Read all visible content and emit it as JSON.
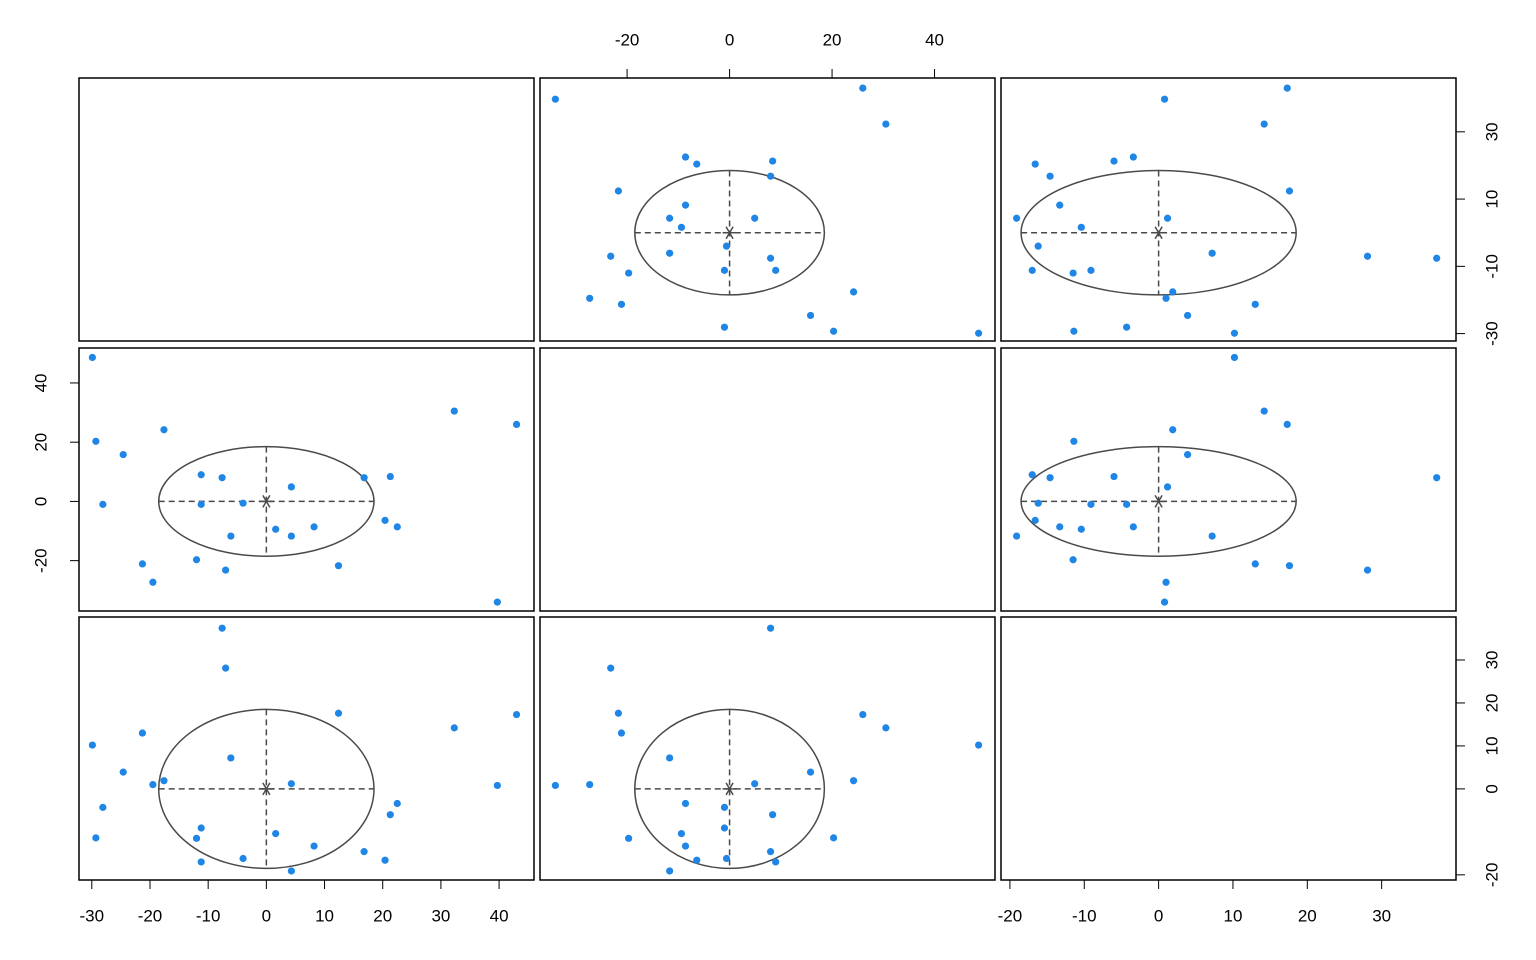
{
  "chart_data": {
    "type": "pairs",
    "data": [
      [
        39.7,
        43,
        32.3,
        22.5,
        20.4,
        21.3,
        16.8,
        12.4,
        8.2,
        4.3,
        4.3,
        1.6,
        -4,
        -6.1,
        -7,
        -7.6,
        -11.2,
        -11.2,
        -12,
        -17.6,
        -19.5,
        -21.3,
        -24.6,
        -28.1,
        -29.3,
        -29.9
      ],
      [
        -34,
        26,
        30.5,
        -8.6,
        -6.4,
        8.4,
        8,
        -21.7,
        -8.6,
        -11.7,
        4.9,
        -9.4,
        -0.6,
        -11.7,
        -23.2,
        8,
        9,
        -1,
        -19.7,
        24.2,
        -27.3,
        -21.1,
        15.8,
        -1,
        20.3,
        48.6
      ],
      [
        0.8,
        17.3,
        14.2,
        -3.4,
        -16.6,
        -6,
        -14.6,
        17.6,
        -13.3,
        -19.1,
        1.2,
        -10.4,
        -16.2,
        7.2,
        28.1,
        37.4,
        -17,
        -9.1,
        -11.5,
        1.9,
        1,
        13,
        3.9,
        -4.3,
        -11.4,
        10.2
      ]
    ],
    "lims": [
      [
        -32.2,
        46
      ],
      [
        -37,
        51.8
      ],
      [
        -21.2,
        40
      ]
    ],
    "point_color": "#1f86e6",
    "ellipse": {
      "center": [
        0,
        0,
        0
      ],
      "semi_axes": [
        18.5,
        18.5,
        18.5
      ],
      "color": "#4a4a4a"
    },
    "axes": [
      {
        "side": "top",
        "index": 1,
        "ticks": [
          -20,
          0,
          20,
          40
        ]
      },
      {
        "side": "bottom",
        "index": 0,
        "ticks": [
          -30,
          -20,
          -10,
          0,
          10,
          20,
          30,
          40
        ]
      },
      {
        "side": "bottom",
        "index": 2,
        "ticks": [
          -20,
          -10,
          0,
          10,
          20,
          30
        ]
      },
      {
        "side": "left",
        "index": 1,
        "ticks": [
          -20,
          0,
          20,
          40
        ]
      },
      {
        "side": "right",
        "index": 0,
        "ticks": [
          -30,
          -10,
          10,
          30
        ]
      },
      {
        "side": "right",
        "index": 2,
        "ticks": [
          -20,
          0,
          10,
          20,
          30
        ]
      }
    ]
  }
}
